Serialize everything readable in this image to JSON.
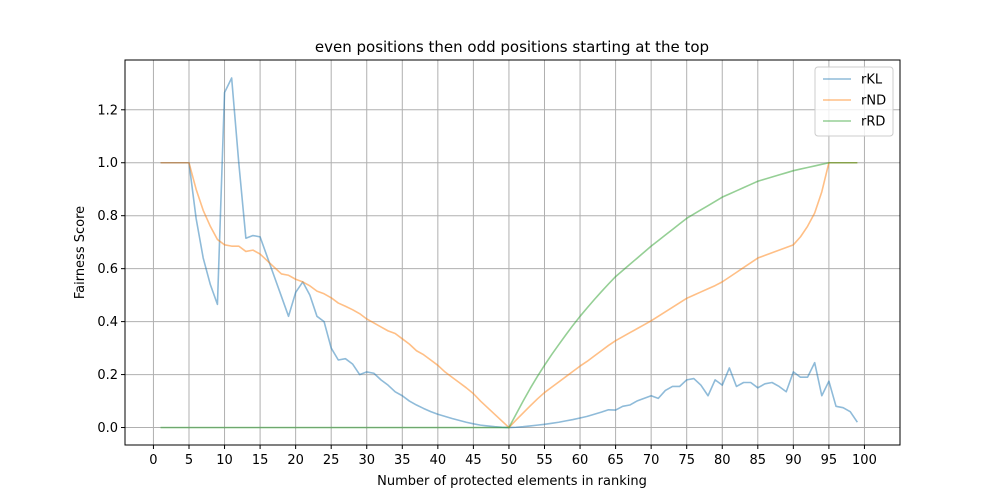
{
  "chart_data": {
    "type": "line",
    "title": "even positions then odd positions starting at the top",
    "xlabel": "Number of protected elements in ranking",
    "ylabel": "Fairness Score",
    "xlim": [
      -4,
      105
    ],
    "ylim": [
      -0.066,
      1.388
    ],
    "xticks": [
      0,
      5,
      10,
      15,
      20,
      25,
      30,
      35,
      40,
      45,
      50,
      55,
      60,
      65,
      70,
      75,
      80,
      85,
      90,
      95,
      100
    ],
    "xtick_labels": [
      "0",
      "5",
      "10",
      "15",
      "20",
      "25",
      "30",
      "35",
      "40",
      "45",
      "50",
      "55",
      "60",
      "65",
      "70",
      "75",
      "80",
      "85",
      "90",
      "95",
      "100"
    ],
    "yticks": [
      0.0,
      0.2,
      0.4,
      0.6,
      0.8,
      1.0,
      1.2
    ],
    "ytick_labels": [
      "0.0",
      "0.2",
      "0.4",
      "0.6",
      "0.8",
      "1.0",
      "1.2"
    ],
    "grid": true,
    "legend_position": "top-right",
    "series": [
      {
        "name": "rKL",
        "color": "#1f77b4",
        "points": [
          [
            1,
            1.0
          ],
          [
            2,
            1.0
          ],
          [
            3,
            1.0
          ],
          [
            4,
            1.0
          ],
          [
            5,
            1.0
          ],
          [
            6,
            0.79
          ],
          [
            7,
            0.64
          ],
          [
            8,
            0.54
          ],
          [
            9,
            0.465
          ],
          [
            10,
            1.265
          ],
          [
            11,
            1.32
          ],
          [
            12,
            1.0
          ],
          [
            13,
            0.715
          ],
          [
            14,
            0.725
          ],
          [
            15,
            0.72
          ],
          [
            16,
            0.645
          ],
          [
            17,
            0.57
          ],
          [
            18,
            0.495
          ],
          [
            19,
            0.42
          ],
          [
            20,
            0.51
          ],
          [
            21,
            0.55
          ],
          [
            22,
            0.5
          ],
          [
            23,
            0.42
          ],
          [
            24,
            0.4
          ],
          [
            25,
            0.3
          ],
          [
            26,
            0.255
          ],
          [
            27,
            0.26
          ],
          [
            28,
            0.24
          ],
          [
            29,
            0.2
          ],
          [
            30,
            0.21
          ],
          [
            31,
            0.205
          ],
          [
            32,
            0.18
          ],
          [
            33,
            0.16
          ],
          [
            34,
            0.135
          ],
          [
            35,
            0.12
          ],
          [
            36,
            0.1
          ],
          [
            37,
            0.085
          ],
          [
            38,
            0.072
          ],
          [
            39,
            0.06
          ],
          [
            40,
            0.05
          ],
          [
            41,
            0.042
          ],
          [
            42,
            0.034
          ],
          [
            43,
            0.027
          ],
          [
            44,
            0.02
          ],
          [
            45,
            0.014
          ],
          [
            46,
            0.009
          ],
          [
            47,
            0.006
          ],
          [
            48,
            0.003
          ],
          [
            49,
            0.001
          ],
          [
            50,
            0.0
          ],
          [
            51,
            0.001
          ],
          [
            52,
            0.003
          ],
          [
            53,
            0.006
          ],
          [
            54,
            0.009
          ],
          [
            55,
            0.012
          ],
          [
            56,
            0.016
          ],
          [
            57,
            0.02
          ],
          [
            58,
            0.025
          ],
          [
            59,
            0.03
          ],
          [
            60,
            0.036
          ],
          [
            61,
            0.042
          ],
          [
            62,
            0.05
          ],
          [
            63,
            0.058
          ],
          [
            64,
            0.067
          ],
          [
            65,
            0.066
          ],
          [
            66,
            0.08
          ],
          [
            67,
            0.085
          ],
          [
            68,
            0.1
          ],
          [
            69,
            0.11
          ],
          [
            70,
            0.12
          ],
          [
            71,
            0.11
          ],
          [
            72,
            0.14
          ],
          [
            73,
            0.155
          ],
          [
            74,
            0.155
          ],
          [
            75,
            0.18
          ],
          [
            76,
            0.185
          ],
          [
            77,
            0.16
          ],
          [
            78,
            0.12
          ],
          [
            79,
            0.18
          ],
          [
            80,
            0.16
          ],
          [
            81,
            0.225
          ],
          [
            82,
            0.155
          ],
          [
            83,
            0.17
          ],
          [
            84,
            0.17
          ],
          [
            85,
            0.15
          ],
          [
            86,
            0.165
          ],
          [
            87,
            0.17
          ],
          [
            88,
            0.155
          ],
          [
            89,
            0.135
          ],
          [
            90,
            0.21
          ],
          [
            91,
            0.19
          ],
          [
            92,
            0.19
          ],
          [
            93,
            0.245
          ],
          [
            94,
            0.12
          ],
          [
            95,
            0.175
          ],
          [
            96,
            0.08
          ],
          [
            97,
            0.075
          ],
          [
            98,
            0.06
          ],
          [
            99,
            0.02
          ]
        ]
      },
      {
        "name": "rND",
        "color": "#ff7f0e",
        "points": [
          [
            1,
            1.0
          ],
          [
            2,
            1.0
          ],
          [
            3,
            1.0
          ],
          [
            4,
            1.0
          ],
          [
            5,
            1.0
          ],
          [
            6,
            0.9
          ],
          [
            7,
            0.82
          ],
          [
            8,
            0.76
          ],
          [
            9,
            0.71
          ],
          [
            10,
            0.69
          ],
          [
            11,
            0.685
          ],
          [
            12,
            0.685
          ],
          [
            13,
            0.665
          ],
          [
            14,
            0.67
          ],
          [
            15,
            0.655
          ],
          [
            16,
            0.63
          ],
          [
            17,
            0.605
          ],
          [
            18,
            0.58
          ],
          [
            19,
            0.575
          ],
          [
            20,
            0.56
          ],
          [
            21,
            0.55
          ],
          [
            22,
            0.535
          ],
          [
            23,
            0.515
          ],
          [
            24,
            0.505
          ],
          [
            25,
            0.49
          ],
          [
            26,
            0.47
          ],
          [
            27,
            0.458
          ],
          [
            28,
            0.445
          ],
          [
            29,
            0.43
          ],
          [
            30,
            0.41
          ],
          [
            31,
            0.395
          ],
          [
            32,
            0.38
          ],
          [
            33,
            0.365
          ],
          [
            34,
            0.355
          ],
          [
            35,
            0.335
          ],
          [
            36,
            0.315
          ],
          [
            37,
            0.29
          ],
          [
            38,
            0.275
          ],
          [
            39,
            0.255
          ],
          [
            40,
            0.235
          ],
          [
            41,
            0.21
          ],
          [
            42,
            0.19
          ],
          [
            43,
            0.17
          ],
          [
            44,
            0.15
          ],
          [
            45,
            0.128
          ],
          [
            46,
            0.1
          ],
          [
            47,
            0.075
          ],
          [
            48,
            0.05
          ],
          [
            49,
            0.025
          ],
          [
            50,
            0.0
          ],
          [
            51,
            0.028
          ],
          [
            52,
            0.055
          ],
          [
            53,
            0.082
          ],
          [
            54,
            0.108
          ],
          [
            55,
            0.132
          ],
          [
            56,
            0.152
          ],
          [
            57,
            0.172
          ],
          [
            58,
            0.192
          ],
          [
            59,
            0.212
          ],
          [
            60,
            0.232
          ],
          [
            61,
            0.25
          ],
          [
            62,
            0.27
          ],
          [
            63,
            0.29
          ],
          [
            64,
            0.31
          ],
          [
            65,
            0.328
          ],
          [
            66,
            0.343
          ],
          [
            67,
            0.358
          ],
          [
            68,
            0.373
          ],
          [
            69,
            0.388
          ],
          [
            70,
            0.403
          ],
          [
            71,
            0.42
          ],
          [
            72,
            0.437
          ],
          [
            73,
            0.454
          ],
          [
            74,
            0.471
          ],
          [
            75,
            0.488
          ],
          [
            76,
            0.5
          ],
          [
            77,
            0.512
          ],
          [
            78,
            0.524
          ],
          [
            79,
            0.536
          ],
          [
            80,
            0.55
          ],
          [
            81,
            0.568
          ],
          [
            82,
            0.586
          ],
          [
            83,
            0.604
          ],
          [
            84,
            0.622
          ],
          [
            85,
            0.64
          ],
          [
            86,
            0.65
          ],
          [
            87,
            0.66
          ],
          [
            88,
            0.67
          ],
          [
            89,
            0.68
          ],
          [
            90,
            0.69
          ],
          [
            91,
            0.72
          ],
          [
            92,
            0.76
          ],
          [
            93,
            0.81
          ],
          [
            94,
            0.89
          ],
          [
            95,
            1.0
          ],
          [
            96,
            1.0
          ],
          [
            97,
            1.0
          ],
          [
            98,
            1.0
          ],
          [
            99,
            1.0
          ]
        ]
      },
      {
        "name": "rRD",
        "color": "#2ca02c",
        "points": [
          [
            1,
            0.0
          ],
          [
            5,
            0.0
          ],
          [
            10,
            0.0
          ],
          [
            15,
            0.0
          ],
          [
            20,
            0.0
          ],
          [
            25,
            0.0
          ],
          [
            30,
            0.0
          ],
          [
            35,
            0.0
          ],
          [
            40,
            0.0
          ],
          [
            45,
            0.0
          ],
          [
            50,
            0.0
          ],
          [
            51,
            0.05
          ],
          [
            52,
            0.1
          ],
          [
            53,
            0.148
          ],
          [
            54,
            0.193
          ],
          [
            55,
            0.235
          ],
          [
            56,
            0.275
          ],
          [
            57,
            0.313
          ],
          [
            58,
            0.35
          ],
          [
            59,
            0.386
          ],
          [
            60,
            0.42
          ],
          [
            61,
            0.452
          ],
          [
            62,
            0.483
          ],
          [
            63,
            0.513
          ],
          [
            64,
            0.542
          ],
          [
            65,
            0.57
          ],
          [
            66,
            0.593
          ],
          [
            67,
            0.616
          ],
          [
            68,
            0.639
          ],
          [
            69,
            0.662
          ],
          [
            70,
            0.685
          ],
          [
            71,
            0.706
          ],
          [
            72,
            0.727
          ],
          [
            73,
            0.748
          ],
          [
            74,
            0.769
          ],
          [
            75,
            0.79
          ],
          [
            76,
            0.806
          ],
          [
            77,
            0.822
          ],
          [
            78,
            0.838
          ],
          [
            79,
            0.854
          ],
          [
            80,
            0.87
          ],
          [
            81,
            0.882
          ],
          [
            82,
            0.894
          ],
          [
            83,
            0.906
          ],
          [
            84,
            0.918
          ],
          [
            85,
            0.93
          ],
          [
            86,
            0.938
          ],
          [
            87,
            0.946
          ],
          [
            88,
            0.954
          ],
          [
            89,
            0.962
          ],
          [
            90,
            0.97
          ],
          [
            91,
            0.976
          ],
          [
            92,
            0.982
          ],
          [
            93,
            0.988
          ],
          [
            94,
            0.994
          ],
          [
            95,
            1.0
          ],
          [
            96,
            1.0
          ],
          [
            97,
            1.0
          ],
          [
            98,
            1.0
          ],
          [
            99,
            1.0
          ]
        ]
      }
    ]
  }
}
